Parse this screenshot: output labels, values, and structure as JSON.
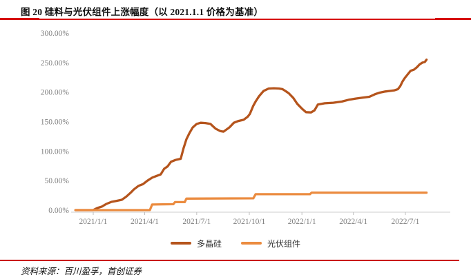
{
  "figure": {
    "title": "图 20 硅料与光伏组件上涨幅度（以 2021.1.1 价格为基准）",
    "source": "资料来源：百川盈孚，首创证券"
  },
  "colors": {
    "rule_red": "#d60d0d",
    "source_rule_red": "#c90909",
    "axis_line_gray": "#d8d8d8",
    "tick_gray": "#bfbfbf",
    "label_gray": "#7f7f7f",
    "polysilicon_orange": "#b5541c",
    "pv_module_orange": "#eb8b3f"
  },
  "chart_data": {
    "type": "line",
    "title": "图 20 硅料与光伏组件上涨幅度（以 2021.1.1 价格为基准）",
    "xlabel": "",
    "ylabel": "",
    "ylim": [
      0,
      300
    ],
    "grid": false,
    "legend_position": "bottom-center",
    "y_ticks": [
      {
        "value": 0,
        "label": "0.00%"
      },
      {
        "value": 50,
        "label": "50.00%"
      },
      {
        "value": 100,
        "label": "100.00%"
      },
      {
        "value": 150,
        "label": "150.00%"
      },
      {
        "value": 200,
        "label": "200.00%"
      },
      {
        "value": 250,
        "label": "250.00%"
      },
      {
        "value": 300,
        "label": "300.00%"
      }
    ],
    "x_ticks": [
      {
        "date": "2021-01-01",
        "label": "2021/1/1"
      },
      {
        "date": "2021-04-01",
        "label": "2021/4/1"
      },
      {
        "date": "2021-07-01",
        "label": "2021/7/1"
      },
      {
        "date": "2021-10-01",
        "label": "2021/10/1"
      },
      {
        "date": "2022-01-01",
        "label": "2022/1/1"
      },
      {
        "date": "2022-04-01",
        "label": "2022/4/1"
      },
      {
        "date": "2022-07-01",
        "label": "2022/7/1"
      }
    ],
    "series": [
      {
        "name": "多晶硅",
        "color": "#b5541c",
        "points": [
          [
            "2020-12-01",
            0
          ],
          [
            "2021-01-01",
            0
          ],
          [
            "2021-01-08",
            3.5
          ],
          [
            "2021-01-16",
            6
          ],
          [
            "2021-01-24",
            10.5
          ],
          [
            "2021-02-02",
            14
          ],
          [
            "2021-02-10",
            15.5
          ],
          [
            "2021-02-20",
            17.5
          ],
          [
            "2021-02-28",
            23
          ],
          [
            "2021-03-08",
            30
          ],
          [
            "2021-03-13",
            35
          ],
          [
            "2021-03-21",
            41
          ],
          [
            "2021-03-29",
            44
          ],
          [
            "2021-04-06",
            50
          ],
          [
            "2021-04-14",
            55
          ],
          [
            "2021-04-22",
            58
          ],
          [
            "2021-04-29",
            60.5
          ],
          [
            "2021-05-05",
            70
          ],
          [
            "2021-05-11",
            74
          ],
          [
            "2021-05-17",
            82
          ],
          [
            "2021-05-25",
            85
          ],
          [
            "2021-06-03",
            87
          ],
          [
            "2021-06-08",
            105
          ],
          [
            "2021-06-13",
            120
          ],
          [
            "2021-06-18",
            130
          ],
          [
            "2021-06-24",
            140
          ],
          [
            "2021-07-01",
            146
          ],
          [
            "2021-07-08",
            148
          ],
          [
            "2021-07-16",
            147.5
          ],
          [
            "2021-07-25",
            146
          ],
          [
            "2021-08-03",
            138
          ],
          [
            "2021-08-11",
            134
          ],
          [
            "2021-08-17",
            133
          ],
          [
            "2021-08-27",
            140
          ],
          [
            "2021-09-04",
            148
          ],
          [
            "2021-09-12",
            151
          ],
          [
            "2021-09-21",
            153
          ],
          [
            "2021-09-28",
            158
          ],
          [
            "2021-10-02",
            163
          ],
          [
            "2021-10-08",
            177
          ],
          [
            "2021-10-12",
            184
          ],
          [
            "2021-10-18",
            193
          ],
          [
            "2021-10-26",
            202
          ],
          [
            "2021-11-04",
            206
          ],
          [
            "2021-11-13",
            206.5
          ],
          [
            "2021-11-22",
            206
          ],
          [
            "2021-11-28",
            205
          ],
          [
            "2021-12-03",
            202
          ],
          [
            "2021-12-09",
            198
          ],
          [
            "2021-12-17",
            190
          ],
          [
            "2021-12-24",
            180
          ],
          [
            "2022-01-01",
            172
          ],
          [
            "2022-01-08",
            166
          ],
          [
            "2022-01-17",
            165.5
          ],
          [
            "2022-01-23",
            169
          ],
          [
            "2022-01-29",
            179
          ],
          [
            "2022-02-10",
            181
          ],
          [
            "2022-02-25",
            182
          ],
          [
            "2022-03-12",
            184
          ],
          [
            "2022-03-24",
            187
          ],
          [
            "2022-04-05",
            189
          ],
          [
            "2022-04-17",
            190.5
          ],
          [
            "2022-04-29",
            192
          ],
          [
            "2022-05-09",
            196.5
          ],
          [
            "2022-05-17",
            199
          ],
          [
            "2022-05-27",
            201
          ],
          [
            "2022-06-04",
            202
          ],
          [
            "2022-06-12",
            203
          ],
          [
            "2022-06-18",
            205
          ],
          [
            "2022-06-22",
            210
          ],
          [
            "2022-06-26",
            218
          ],
          [
            "2022-06-30",
            224
          ],
          [
            "2022-07-05",
            230
          ],
          [
            "2022-07-10",
            236
          ],
          [
            "2022-07-16",
            238
          ],
          [
            "2022-07-21",
            242
          ],
          [
            "2022-07-26",
            247
          ],
          [
            "2022-07-31",
            250
          ],
          [
            "2022-08-04",
            251
          ],
          [
            "2022-08-07",
            255
          ]
        ]
      },
      {
        "name": "光伏组件",
        "color": "#eb8b3f",
        "points": [
          [
            "2020-12-01",
            0
          ],
          [
            "2021-04-10",
            0
          ],
          [
            "2021-04-14",
            9.5
          ],
          [
            "2021-05-21",
            10
          ],
          [
            "2021-05-24",
            13.5
          ],
          [
            "2021-06-10",
            13.5
          ],
          [
            "2021-06-13",
            19.5
          ],
          [
            "2021-10-08",
            20
          ],
          [
            "2021-10-12",
            27
          ],
          [
            "2022-01-15",
            27
          ],
          [
            "2022-01-18",
            29.5
          ],
          [
            "2022-08-07",
            29.5
          ]
        ]
      }
    ]
  }
}
